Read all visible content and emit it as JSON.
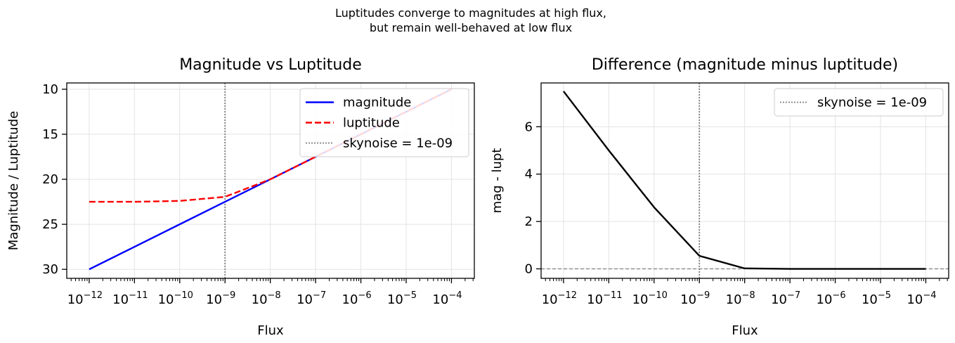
{
  "suptitle": [
    "Luptitudes converge to magnitudes at high flux,",
    "but remain well-behaved at low flux"
  ],
  "chart_data": [
    {
      "type": "line",
      "title": "Magnitude vs Luptitude",
      "xlabel": "Flux",
      "ylabel": "Magnitude / Luptitude",
      "x_scale": "log",
      "xlim": [
        3.2e-13,
        0.00032
      ],
      "ylim": [
        31.0,
        9.3
      ],
      "y_inverted": true,
      "x_ticks": [
        "-12",
        "-11",
        "-10",
        "-9",
        "-8",
        "-7",
        "-6",
        "-5",
        "-4"
      ],
      "x_tick_base": "10",
      "y_ticks": [
        10,
        15,
        20,
        25,
        30
      ],
      "grid": true,
      "legend_position": "top-right",
      "x": [
        1e-12,
        1e-11,
        1e-10,
        1e-09,
        1e-08,
        1e-07,
        1e-06,
        1e-05,
        0.0001
      ],
      "series": [
        {
          "name": "magnitude",
          "color": "#0000ff",
          "dash": "solid",
          "values": [
            30.0,
            27.5,
            25.0,
            22.5,
            20.0,
            17.5,
            15.0,
            12.5,
            10.0
          ]
        },
        {
          "name": "luptitude",
          "color": "#ff0000",
          "dash": "dashed",
          "values": [
            22.5,
            22.5,
            22.4,
            21.95,
            20.0,
            17.5,
            15.0,
            12.5,
            10.0
          ]
        }
      ],
      "vline": {
        "name": "skynoise = 1e-09",
        "x": 1e-09,
        "color": "#808080"
      }
    },
    {
      "type": "line",
      "title": "Difference (magnitude minus luptitude)",
      "xlabel": "Flux",
      "ylabel": "mag - lupt",
      "x_scale": "log",
      "xlim": [
        3.2e-13,
        0.00032
      ],
      "ylim": [
        -0.4,
        7.85
      ],
      "x_ticks": [
        "-12",
        "-11",
        "-10",
        "-9",
        "-8",
        "-7",
        "-6",
        "-5",
        "-4"
      ],
      "x_tick_base": "10",
      "y_ticks": [
        0,
        2,
        4,
        6
      ],
      "grid": true,
      "legend_position": "top-right",
      "x": [
        1e-12,
        1e-11,
        1e-10,
        1e-09,
        1e-08,
        1e-07,
        1e-06,
        1e-05,
        0.0001
      ],
      "series": [
        {
          "name": "mag - lupt",
          "color": "#000000",
          "dash": "solid",
          "values": [
            7.5,
            5.0,
            2.6,
            0.55,
            0.02,
            0.0,
            0.0,
            0.0,
            0.0
          ]
        }
      ],
      "vline": {
        "name": "skynoise = 1e-09",
        "x": 1e-09,
        "color": "#808080"
      },
      "hline": {
        "y": 0,
        "color": "#808080"
      }
    }
  ]
}
